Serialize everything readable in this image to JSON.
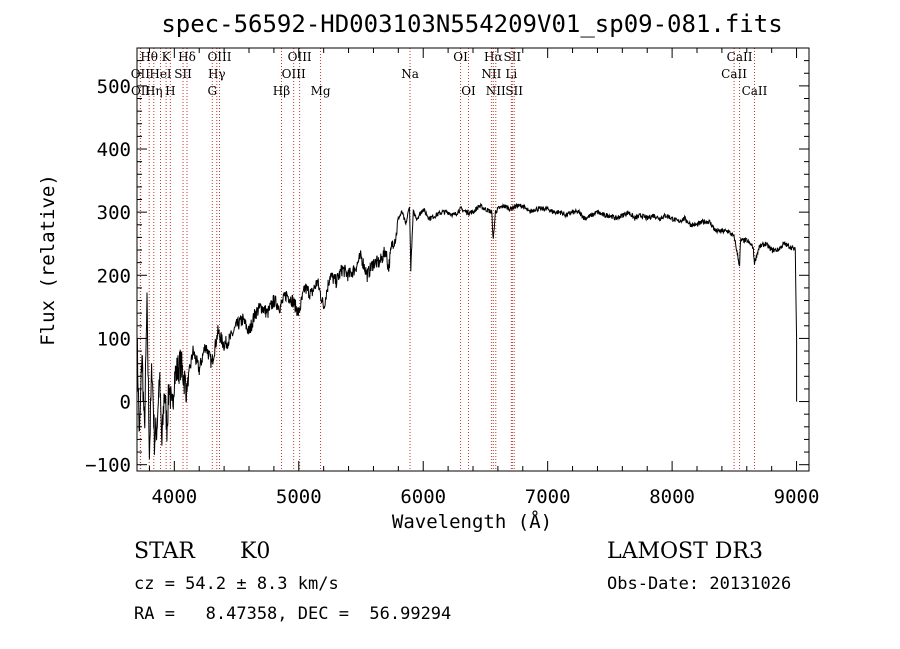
{
  "chart_data": {
    "type": "line",
    "title": "spec-56592-HD003103N554209V01_sp09-081.fits",
    "xlabel": "Wavelength (Å)",
    "ylabel": "Flux (relative)",
    "xlim": [
      3700,
      9100
    ],
    "ylim": [
      -110,
      560
    ],
    "xticks": [
      4000,
      5000,
      6000,
      7000,
      8000,
      9000
    ],
    "yticks": [
      -100,
      0,
      100,
      200,
      300,
      400,
      500
    ],
    "ytick_labels": [
      "−100",
      "0",
      "100",
      "200",
      "300",
      "400",
      "500"
    ],
    "series": [
      {
        "x": [
          3700,
          3720,
          3740,
          3760,
          3780,
          3800,
          3820,
          3840,
          3860,
          3880,
          3900,
          3920,
          3940,
          3960,
          3980,
          4000,
          4050,
          4100,
          4150,
          4200,
          4250,
          4300,
          4350,
          4400,
          4450,
          4500,
          4550,
          4600,
          4650,
          4700,
          4750,
          4800,
          4850,
          4900,
          4950,
          5000,
          5050,
          5100,
          5150,
          5200,
          5250,
          5300,
          5350,
          5400,
          5450,
          5500,
          5550,
          5600,
          5650,
          5700,
          5720,
          5750,
          5780,
          5800,
          5830,
          5860,
          5890,
          5900,
          5920,
          5950,
          6000,
          6050,
          6100,
          6150,
          6200,
          6250,
          6300,
          6350,
          6400,
          6450,
          6500,
          6550,
          6563,
          6580,
          6600,
          6650,
          6700,
          6750,
          6800,
          6850,
          6900,
          6950,
          7000,
          7050,
          7100,
          7150,
          7200,
          7250,
          7300,
          7350,
          7400,
          7450,
          7500,
          7550,
          7600,
          7650,
          7700,
          7750,
          7800,
          7850,
          7900,
          7950,
          8000,
          8050,
          8100,
          8150,
          8200,
          8250,
          8300,
          8350,
          8400,
          8450,
          8500,
          8542,
          8550,
          8600,
          8650,
          8662,
          8700,
          8750,
          8800,
          8850,
          8900,
          8950,
          8990,
          9000,
          9000
        ],
        "values": [
          100,
          -60,
          80,
          -50,
          150,
          -80,
          60,
          -60,
          -40,
          40,
          -70,
          20,
          -40,
          30,
          -20,
          40,
          60,
          20,
          80,
          50,
          90,
          60,
          110,
          90,
          100,
          120,
          130,
          110,
          140,
          150,
          140,
          160,
          150,
          170,
          160,
          140,
          180,
          170,
          190,
          150,
          200,
          190,
          210,
          200,
          210,
          230,
          200,
          220,
          220,
          240,
          210,
          250,
          260,
          290,
          300,
          280,
          310,
          210,
          300,
          290,
          305,
          290,
          295,
          300,
          300,
          295,
          305,
          300,
          300,
          310,
          305,
          300,
          255,
          300,
          305,
          310,
          305,
          310,
          310,
          300,
          305,
          305,
          305,
          300,
          300,
          295,
          300,
          300,
          290,
          295,
          300,
          295,
          295,
          290,
          295,
          300,
          290,
          295,
          290,
          295,
          290,
          295,
          290,
          285,
          290,
          280,
          280,
          285,
          285,
          270,
          270,
          270,
          260,
          215,
          255,
          255,
          245,
          220,
          245,
          250,
          240,
          240,
          250,
          245,
          240,
          100,
          0
        ]
      }
    ],
    "lines": [
      {
        "name": "Hθ",
        "w": 3798,
        "row": 0
      },
      {
        "name": "OII",
        "w": 3727,
        "row": 1
      },
      {
        "name": "OII",
        "w": 3729,
        "row": 2
      },
      {
        "name": "Hη",
        "w": 3835,
        "row": 2
      },
      {
        "name": "HeI",
        "w": 3889,
        "row": 1
      },
      {
        "name": "K",
        "w": 3934,
        "row": 0
      },
      {
        "name": "H",
        "w": 3968,
        "row": 2
      },
      {
        "name": "SII",
        "w": 4070,
        "row": 1
      },
      {
        "name": "Hδ",
        "w": 4102,
        "row": 0
      },
      {
        "name": "OIII",
        "w": 4363,
        "row": 0
      },
      {
        "name": "Hγ",
        "w": 4341,
        "row": 1
      },
      {
        "name": "G",
        "w": 4305,
        "row": 2
      },
      {
        "name": "Hβ",
        "w": 4861,
        "row": 2
      },
      {
        "name": "OIII",
        "w": 5007,
        "row": 0
      },
      {
        "name": "OIII",
        "w": 4959,
        "row": 1
      },
      {
        "name": "Mg",
        "w": 5175,
        "row": 2
      },
      {
        "name": "Na",
        "w": 5894,
        "row": 1
      },
      {
        "name": "OI",
        "w": 6300,
        "row": 0
      },
      {
        "name": "OI",
        "w": 6364,
        "row": 2
      },
      {
        "name": "Hα",
        "w": 6563,
        "row": 0
      },
      {
        "name": "NII",
        "w": 6548,
        "row": 1
      },
      {
        "name": "NII",
        "w": 6583,
        "row": 2
      },
      {
        "name": "SII",
        "w": 6716,
        "row": 0
      },
      {
        "name": "Li",
        "w": 6708,
        "row": 1
      },
      {
        "name": "SII",
        "w": 6731,
        "row": 2
      },
      {
        "name": "CaII",
        "w": 8542,
        "row": 0
      },
      {
        "name": "CaII",
        "w": 8498,
        "row": 1
      },
      {
        "name": "CaII",
        "w": 8662,
        "row": 2
      }
    ]
  },
  "info": {
    "object_class": "STAR",
    "subclass": "K0",
    "survey": "LAMOST DR3",
    "cz": "cz = 54.2 ± 8.3 km/s",
    "obs_date": "Obs-Date: 20131026",
    "coords": "RA =   8.47358, DEC =  56.99294"
  }
}
